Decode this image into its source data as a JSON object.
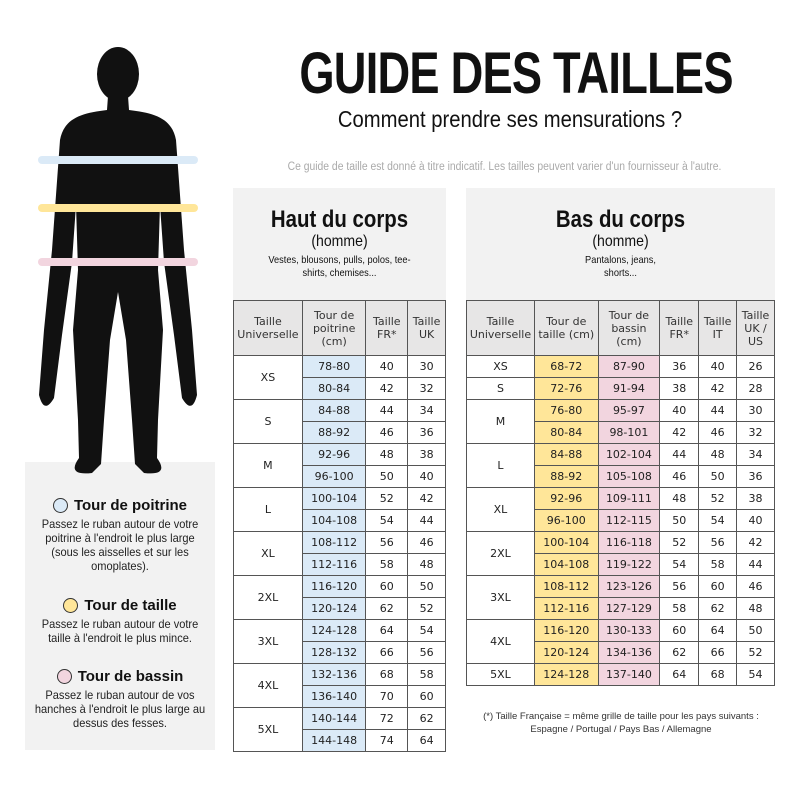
{
  "header": {
    "title": "GUIDE DES TAILLES",
    "subtitle": "Comment prendre ses mensurations ?",
    "note": "Ce guide de taille est donné à titre indicatif. Les tailles peuvent varier d'un fournisseur à l'autre."
  },
  "colors": {
    "chest": "#dbeaf7",
    "waist": "#ffe699",
    "hips": "#f2d5df",
    "panel": "#f2f2f2",
    "header_cell": "#e7e6e6"
  },
  "measures": [
    {
      "icon": "blue-circle-icon",
      "title": "Tour de poitrine",
      "text": "Passez le ruban autour de votre poitrine à l'endroit le plus large (sous les aisselles et sur les omoplates)."
    },
    {
      "icon": "yellow-circle-icon",
      "title": "Tour de taille",
      "text": "Passez le ruban autour de votre taille à l'endroit le plus mince."
    },
    {
      "icon": "pink-circle-icon",
      "title": "Tour de bassin",
      "text": "Passez le ruban autour de vos hanches à l'endroit le plus large au dessus des fesses."
    }
  ],
  "top": {
    "title": "Haut du corps",
    "sub": "(homme)",
    "desc": "Vestes, blousons, pulls, polos, tee-shirts, chemises...",
    "headers": [
      "Taille Universelle",
      "Tour de poitrine (cm)",
      "Taille FR*",
      "Taille UK"
    ],
    "groups": [
      {
        "size": "XS",
        "rows": [
          [
            "78-80",
            "40",
            "30"
          ],
          [
            "80-84",
            "42",
            "32"
          ]
        ]
      },
      {
        "size": "S",
        "rows": [
          [
            "84-88",
            "44",
            "34"
          ],
          [
            "88-92",
            "46",
            "36"
          ]
        ]
      },
      {
        "size": "M",
        "rows": [
          [
            "92-96",
            "48",
            "38"
          ],
          [
            "96-100",
            "50",
            "40"
          ]
        ]
      },
      {
        "size": "L",
        "rows": [
          [
            "100-104",
            "52",
            "42"
          ],
          [
            "104-108",
            "54",
            "44"
          ]
        ]
      },
      {
        "size": "XL",
        "rows": [
          [
            "108-112",
            "56",
            "46"
          ],
          [
            "112-116",
            "58",
            "48"
          ]
        ]
      },
      {
        "size": "2XL",
        "rows": [
          [
            "116-120",
            "60",
            "50"
          ],
          [
            "120-124",
            "62",
            "52"
          ]
        ]
      },
      {
        "size": "3XL",
        "rows": [
          [
            "124-128",
            "64",
            "54"
          ],
          [
            "128-132",
            "66",
            "56"
          ]
        ]
      },
      {
        "size": "4XL",
        "rows": [
          [
            "132-136",
            "68",
            "58"
          ],
          [
            "136-140",
            "70",
            "60"
          ]
        ]
      },
      {
        "size": "5XL",
        "rows": [
          [
            "140-144",
            "72",
            "62"
          ],
          [
            "144-148",
            "74",
            "64"
          ]
        ]
      }
    ]
  },
  "bottom": {
    "title": "Bas du corps",
    "sub": "(homme)",
    "desc": "Pantalons, jeans, shorts...",
    "headers": [
      "Taille Universelle",
      "Tour de taille (cm)",
      "Tour de bassin (cm)",
      "Taille FR*",
      "Taille IT",
      "Taille UK / US"
    ],
    "groups": [
      {
        "size": "XS",
        "rows": [
          [
            "68-72",
            "87-90",
            "36",
            "40",
            "26"
          ]
        ]
      },
      {
        "size": "S",
        "rows": [
          [
            "72-76",
            "91-94",
            "38",
            "42",
            "28"
          ]
        ]
      },
      {
        "size": "M",
        "rows": [
          [
            "76-80",
            "95-97",
            "40",
            "44",
            "30"
          ],
          [
            "80-84",
            "98-101",
            "42",
            "46",
            "32"
          ]
        ]
      },
      {
        "size": "L",
        "rows": [
          [
            "84-88",
            "102-104",
            "44",
            "48",
            "34"
          ],
          [
            "88-92",
            "105-108",
            "46",
            "50",
            "36"
          ]
        ]
      },
      {
        "size": "XL",
        "rows": [
          [
            "92-96",
            "109-111",
            "48",
            "52",
            "38"
          ],
          [
            "96-100",
            "112-115",
            "50",
            "54",
            "40"
          ]
        ]
      },
      {
        "size": "2XL",
        "rows": [
          [
            "100-104",
            "116-118",
            "52",
            "56",
            "42"
          ],
          [
            "104-108",
            "119-122",
            "54",
            "58",
            "44"
          ]
        ]
      },
      {
        "size": "3XL",
        "rows": [
          [
            "108-112",
            "123-126",
            "56",
            "60",
            "46"
          ],
          [
            "112-116",
            "127-129",
            "58",
            "62",
            "48"
          ]
        ]
      },
      {
        "size": "4XL",
        "rows": [
          [
            "116-120",
            "130-133",
            "60",
            "64",
            "50"
          ],
          [
            "120-124",
            "134-136",
            "62",
            "66",
            "52"
          ]
        ]
      },
      {
        "size": "5XL",
        "rows": [
          [
            "124-128",
            "137-140",
            "64",
            "68",
            "54"
          ]
        ]
      }
    ]
  },
  "footnote": {
    "line1": "(*) Taille Française = même grille de taille pour les pays suivants :",
    "line2": "Espagne / Portugal / Pays Bas / Allemagne"
  }
}
